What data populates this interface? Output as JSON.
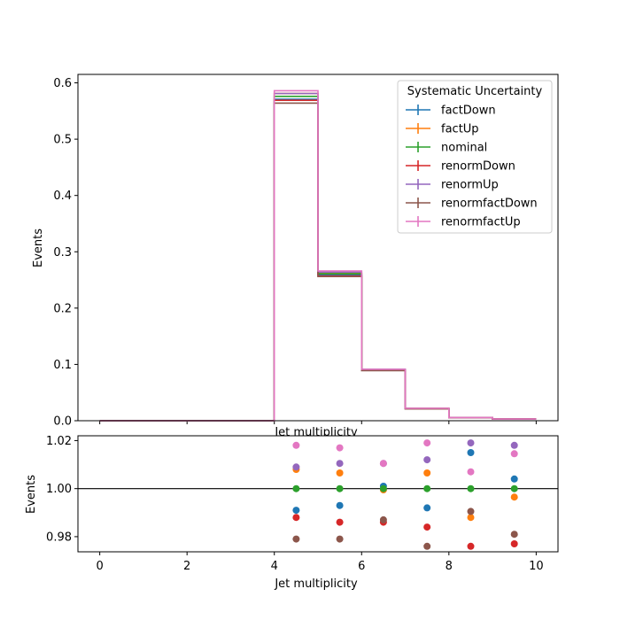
{
  "chart_data": [
    {
      "type": "line",
      "drawstyle": "steps",
      "xlabel": "Jet multiplicity",
      "ylabel": "Events",
      "xlim": [
        -0.5,
        10.5
      ],
      "ylim": [
        0,
        0.615
      ],
      "bin_edges": [
        0,
        1,
        2,
        3,
        4,
        5,
        6,
        7,
        8,
        9,
        10
      ],
      "x_ticks": [],
      "y_ticks": [
        "0.0",
        "0.1",
        "0.2",
        "0.3",
        "0.4",
        "0.5",
        "0.6"
      ],
      "legend": {
        "title": "Systematic Uncertainty",
        "placement": "top-right"
      },
      "series": [
        {
          "name": "factDown",
          "color": "#1f77b4",
          "values": [
            0,
            0,
            0,
            0,
            0.571,
            0.259,
            0.0905,
            0.0215,
            0.0055,
            0.003
          ]
        },
        {
          "name": "factUp",
          "color": "#ff7f0e",
          "values": [
            0,
            0,
            0,
            0,
            0.581,
            0.262,
            0.0903,
            0.0218,
            0.0054,
            0.003
          ]
        },
        {
          "name": "nominal",
          "color": "#2ca02c",
          "values": [
            0,
            0,
            0,
            0,
            0.576,
            0.261,
            0.0904,
            0.0216,
            0.0055,
            0.003
          ]
        },
        {
          "name": "renormDown",
          "color": "#d62728",
          "values": [
            0,
            0,
            0,
            0,
            0.569,
            0.257,
            0.0893,
            0.0213,
            0.0054,
            0.003
          ]
        },
        {
          "name": "renormUp",
          "color": "#9467bd",
          "values": [
            0,
            0,
            0,
            0,
            0.581,
            0.264,
            0.0914,
            0.0219,
            0.0056,
            0.003
          ]
        },
        {
          "name": "renormfactDown",
          "color": "#8c564b",
          "values": [
            0,
            0,
            0,
            0,
            0.564,
            0.256,
            0.0891,
            0.0211,
            0.0054,
            0.003
          ]
        },
        {
          "name": "renormfactUp",
          "color": "#e377c2",
          "values": [
            0,
            0,
            0,
            0,
            0.586,
            0.266,
            0.0913,
            0.022,
            0.0056,
            0.003
          ]
        }
      ]
    },
    {
      "type": "scatter",
      "xlabel": "Jet multiplicity",
      "ylabel": "Events",
      "xlim": [
        -0.5,
        10.5
      ],
      "ylim": [
        0.9737,
        1.022
      ],
      "reference_line": 1.0,
      "x_ticks": [
        "0",
        "2",
        "4",
        "6",
        "8",
        "10"
      ],
      "y_ticks": [
        "0.98",
        "1.00",
        "1.02"
      ],
      "x": [
        4.5,
        5.5,
        6.5,
        7.5,
        8.5,
        9.5
      ],
      "series": [
        {
          "name": "factDown",
          "color": "#1f77b4",
          "values": [
            0.991,
            0.993,
            1.001,
            0.992,
            1.015,
            1.004
          ]
        },
        {
          "name": "factUp",
          "color": "#ff7f0e",
          "values": [
            1.008,
            1.0065,
            0.9995,
            1.0065,
            0.988,
            0.9965
          ]
        },
        {
          "name": "nominal",
          "color": "#2ca02c",
          "values": [
            1.0,
            1.0,
            1.0,
            1.0,
            1.0,
            1.0
          ]
        },
        {
          "name": "renormDown",
          "color": "#d62728",
          "values": [
            0.988,
            0.986,
            0.986,
            0.984,
            0.976,
            0.977
          ]
        },
        {
          "name": "renormUp",
          "color": "#9467bd",
          "values": [
            1.009,
            1.0105,
            1.0105,
            1.012,
            1.019,
            1.018
          ]
        },
        {
          "name": "renormfactDown",
          "color": "#8c564b",
          "values": [
            0.979,
            0.979,
            0.987,
            0.976,
            0.9905,
            0.981
          ]
        },
        {
          "name": "renormfactUp",
          "color": "#e377c2",
          "values": [
            1.018,
            1.017,
            1.0105,
            1.019,
            1.007,
            1.0145
          ]
        }
      ]
    }
  ]
}
